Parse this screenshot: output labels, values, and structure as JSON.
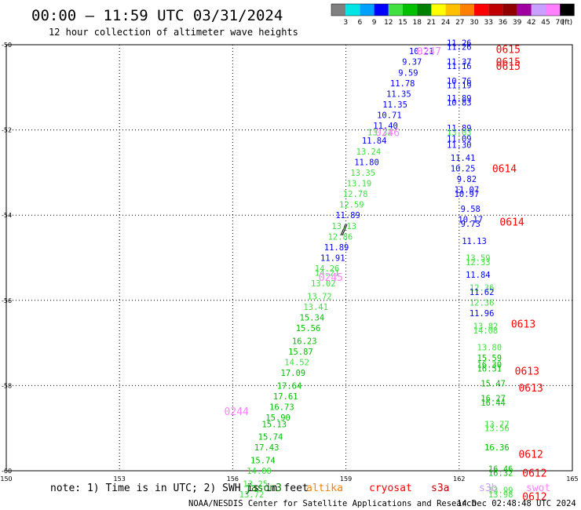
{
  "chart_data": {
    "type": "scatter",
    "title": "00:00 – 11:59 UTC 03/31/2024",
    "subtitle": "12 hour collection of altimeter wave heights",
    "xlim": [
      150,
      165
    ],
    "ylim": [
      -60,
      -50
    ],
    "x_ticks": [
      "150",
      "153",
      "156",
      "159",
      "162",
      "165"
    ],
    "y_ticks": [
      "-50",
      "-52",
      "-54",
      "-56",
      "-58",
      "-60"
    ],
    "grid": true,
    "colorbar": {
      "ticks": [
        "3",
        "6",
        "9",
        "12",
        "15",
        "18",
        "21",
        "24",
        "27",
        "30",
        "33",
        "36",
        "39",
        "42",
        "45",
        "70",
        "(ft)"
      ],
      "colors": [
        "#808080",
        "#00e5e5",
        "#00a0ff",
        "#0000ff",
        "#40e040",
        "#00c000",
        "#008000",
        "#ffff00",
        "#ffc000",
        "#ff8000",
        "#ff0000",
        "#c00000",
        "#900000",
        "#a000a0",
        "#c8a0ff",
        "#ff80ff",
        "#000000"
      ]
    },
    "series": [
      {
        "pass_labels": [
          {
            "text": "0247",
            "x": 161.2,
            "y": -50.15,
            "color": "#ff80ff"
          },
          {
            "text": "0246",
            "x": 160.1,
            "y": -52.05,
            "color": "#ff80ff"
          },
          {
            "text": "0245",
            "x": 158.6,
            "y": -55.45,
            "color": "#ff80ff"
          },
          {
            "text": "0244",
            "x": 156.1,
            "y": -58.6,
            "color": "#ff80ff"
          }
        ],
        "points": [
          {
            "x": 161.0,
            "y": -50.15,
            "label": "10.21",
            "color": "#0000ff"
          },
          {
            "x": 160.75,
            "y": -50.4,
            "label": "9.37",
            "color": "#0000ff"
          },
          {
            "x": 160.65,
            "y": -50.65,
            "label": "9.59",
            "color": "#0000ff"
          },
          {
            "x": 160.5,
            "y": -50.9,
            "label": "11.78",
            "color": "#0000ff"
          },
          {
            "x": 160.4,
            "y": -51.15,
            "label": "11.35",
            "color": "#0000ff"
          },
          {
            "x": 160.3,
            "y": -51.4,
            "label": "11.35",
            "color": "#0000ff"
          },
          {
            "x": 160.15,
            "y": -51.65,
            "label": "10.71",
            "color": "#0000ff"
          },
          {
            "x": 160.05,
            "y": -51.9,
            "label": "11.40",
            "color": "#0000ff"
          },
          {
            "x": 159.9,
            "y": -52.05,
            "label": "13.32",
            "color": "#40e040"
          },
          {
            "x": 159.75,
            "y": -52.25,
            "label": "11.84",
            "color": "#0000ff"
          },
          {
            "x": 159.6,
            "y": -52.5,
            "label": "13.24",
            "color": "#40e040"
          },
          {
            "x": 159.55,
            "y": -52.75,
            "label": "11.80",
            "color": "#0000ff"
          },
          {
            "x": 159.45,
            "y": -53.0,
            "label": "13.35",
            "color": "#40e040"
          },
          {
            "x": 159.35,
            "y": -53.25,
            "label": "13.19",
            "color": "#40e040"
          },
          {
            "x": 159.25,
            "y": -53.5,
            "label": "12.78",
            "color": "#40e040"
          },
          {
            "x": 159.15,
            "y": -53.75,
            "label": "12.59",
            "color": "#40e040"
          },
          {
            "x": 159.05,
            "y": -54.0,
            "label": "11.89",
            "color": "#0000ff"
          },
          {
            "x": 158.95,
            "y": -54.25,
            "label": "13.13",
            "color": "#40e040"
          },
          {
            "x": 158.85,
            "y": -54.5,
            "label": "12.86",
            "color": "#40e040"
          },
          {
            "x": 158.75,
            "y": -54.75,
            "label": "11.89",
            "color": "#0000ff"
          },
          {
            "x": 158.65,
            "y": -55.0,
            "label": "11.91",
            "color": "#0000ff"
          },
          {
            "x": 158.5,
            "y": -55.25,
            "label": "14.26",
            "color": "#40e040"
          },
          {
            "x": 158.5,
            "y": -55.35,
            "label": "14.21",
            "color": "#40e040"
          },
          {
            "x": 158.4,
            "y": -55.6,
            "label": "13.02",
            "color": "#40e040"
          },
          {
            "x": 158.3,
            "y": -55.9,
            "label": "13.72",
            "color": "#40e040"
          },
          {
            "x": 158.2,
            "y": -56.15,
            "label": "13.41",
            "color": "#40e040"
          },
          {
            "x": 158.1,
            "y": -56.4,
            "label": "15.34",
            "color": "#00c000"
          },
          {
            "x": 158.0,
            "y": -56.65,
            "label": "15.56",
            "color": "#00c000"
          },
          {
            "x": 157.9,
            "y": -56.95,
            "label": "16.23",
            "color": "#00c000"
          },
          {
            "x": 157.8,
            "y": -57.2,
            "label": "15.87",
            "color": "#00c000"
          },
          {
            "x": 157.7,
            "y": -57.45,
            "label": "14.52",
            "color": "#40e040"
          },
          {
            "x": 157.6,
            "y": -57.7,
            "label": "17.09",
            "color": "#00c000"
          },
          {
            "x": 157.5,
            "y": -58.0,
            "label": "17.64",
            "color": "#00c000"
          },
          {
            "x": 157.4,
            "y": -58.25,
            "label": "17.61",
            "color": "#00c000"
          },
          {
            "x": 157.3,
            "y": -58.5,
            "label": "16.73",
            "color": "#00c000"
          },
          {
            "x": 157.2,
            "y": -58.75,
            "label": "15.90",
            "color": "#00c000"
          },
          {
            "x": 157.1,
            "y": -58.9,
            "label": "15.13",
            "color": "#00c000"
          },
          {
            "x": 157.0,
            "y": -59.2,
            "label": "15.74",
            "color": "#00c000"
          },
          {
            "x": 156.9,
            "y": -59.45,
            "label": "17.43",
            "color": "#00c000"
          },
          {
            "x": 156.8,
            "y": -59.75,
            "label": "15.74",
            "color": "#00c000"
          },
          {
            "x": 156.7,
            "y": -60.0,
            "label": "14.00",
            "color": "#40e040"
          },
          {
            "x": 156.6,
            "y": -60.3,
            "label": "13.25",
            "color": "#40e040"
          },
          {
            "x": 156.5,
            "y": -60.55,
            "label": "13.72",
            "color": "#40e040"
          }
        ]
      },
      {
        "pass_labels": [
          {
            "text": "0615",
            "x": 163.3,
            "y": -50.1,
            "color": "#ff0000"
          },
          {
            "text": "0615",
            "x": 163.3,
            "y": -50.4,
            "color": "#ff0000"
          },
          {
            "text": "0615",
            "x": 163.3,
            "y": -50.5,
            "color": "#ff0000"
          },
          {
            "text": "0614",
            "x": 163.2,
            "y": -52.9,
            "color": "#ff0000"
          },
          {
            "text": "0614",
            "x": 163.4,
            "y": -54.15,
            "color": "#ff0000"
          },
          {
            "text": "0613",
            "x": 163.7,
            "y": -56.55,
            "color": "#ff0000"
          },
          {
            "text": "0613",
            "x": 163.8,
            "y": -57.65,
            "color": "#ff0000"
          },
          {
            "text": "0613",
            "x": 163.9,
            "y": -58.05,
            "color": "#ff0000"
          },
          {
            "text": "0612",
            "x": 163.9,
            "y": -59.6,
            "color": "#ff0000"
          },
          {
            "text": "0612",
            "x": 164.0,
            "y": -60.05,
            "color": "#ff0000"
          },
          {
            "text": "0612",
            "x": 164.0,
            "y": -60.6,
            "color": "#ff0000"
          }
        ],
        "points": [
          {
            "x": 162.0,
            "y": -49.95,
            "label": "11.26",
            "color": "#0000ff"
          },
          {
            "x": 162.0,
            "y": -50.05,
            "label": "11.26",
            "color": "#0000ff"
          },
          {
            "x": 162.0,
            "y": -50.4,
            "label": "11.37",
            "color": "#0000ff"
          },
          {
            "x": 162.0,
            "y": -50.5,
            "label": "11.16",
            "color": "#0000ff"
          },
          {
            "x": 162.0,
            "y": -50.85,
            "label": "10.76",
            "color": "#0000ff"
          },
          {
            "x": 162.0,
            "y": -50.95,
            "label": "11.19",
            "color": "#0000ff"
          },
          {
            "x": 162.0,
            "y": -51.25,
            "label": "11.89",
            "color": "#0000ff"
          },
          {
            "x": 162.0,
            "y": -51.35,
            "label": "10.83",
            "color": "#0000ff"
          },
          {
            "x": 162.0,
            "y": -51.95,
            "label": "11.89",
            "color": "#0000ff"
          },
          {
            "x": 162.0,
            "y": -52.05,
            "label": "13.03",
            "color": "#40e040"
          },
          {
            "x": 162.0,
            "y": -52.2,
            "label": "11.09",
            "color": "#0000ff"
          },
          {
            "x": 162.0,
            "y": -52.35,
            "label": "11.30",
            "color": "#0000ff"
          },
          {
            "x": 162.1,
            "y": -52.65,
            "label": "11.41",
            "color": "#0000ff"
          },
          {
            "x": 162.1,
            "y": -52.9,
            "label": "10.25",
            "color": "#0000ff"
          },
          {
            "x": 162.2,
            "y": -53.15,
            "label": "9.82",
            "color": "#0000ff"
          },
          {
            "x": 162.2,
            "y": -53.4,
            "label": "11.07",
            "color": "#0000ff"
          },
          {
            "x": 162.2,
            "y": -53.5,
            "label": "10.97",
            "color": "#0000ff"
          },
          {
            "x": 162.3,
            "y": -53.85,
            "label": "9.58",
            "color": "#0000ff"
          },
          {
            "x": 162.3,
            "y": -54.1,
            "label": "10.17",
            "color": "#0000ff"
          },
          {
            "x": 162.3,
            "y": -54.2,
            "label": "9.73",
            "color": "#0000ff"
          },
          {
            "x": 162.4,
            "y": -54.6,
            "label": "11.13",
            "color": "#0000ff"
          },
          {
            "x": 162.5,
            "y": -55.0,
            "label": "13.59",
            "color": "#40e040"
          },
          {
            "x": 162.5,
            "y": -55.1,
            "label": "12.33",
            "color": "#40e040"
          },
          {
            "x": 162.5,
            "y": -55.4,
            "label": "11.84",
            "color": "#0000ff"
          },
          {
            "x": 162.6,
            "y": -55.7,
            "label": "12.36",
            "color": "#40e040"
          },
          {
            "x": 162.6,
            "y": -55.8,
            "label": "11.62",
            "color": "#0000ff"
          },
          {
            "x": 162.6,
            "y": -56.05,
            "label": "12.36",
            "color": "#40e040"
          },
          {
            "x": 162.6,
            "y": -56.3,
            "label": "11.96",
            "color": "#0000ff"
          },
          {
            "x": 162.7,
            "y": -56.6,
            "label": "13.82",
            "color": "#40e040"
          },
          {
            "x": 162.7,
            "y": -56.7,
            "label": "14.08",
            "color": "#40e040"
          },
          {
            "x": 162.8,
            "y": -57.1,
            "label": "13.80",
            "color": "#40e040"
          },
          {
            "x": 162.8,
            "y": -57.35,
            "label": "15.59",
            "color": "#00c000"
          },
          {
            "x": 162.8,
            "y": -57.5,
            "label": "16.30",
            "color": "#00c000"
          },
          {
            "x": 162.8,
            "y": -57.6,
            "label": "16.51",
            "color": "#00c000"
          },
          {
            "x": 162.9,
            "y": -57.95,
            "label": "15.47",
            "color": "#00c000"
          },
          {
            "x": 162.9,
            "y": -58.3,
            "label": "16.27",
            "color": "#00c000"
          },
          {
            "x": 162.9,
            "y": -58.4,
            "label": "16.44",
            "color": "#00c000"
          },
          {
            "x": 163.0,
            "y": -58.9,
            "label": "13.77",
            "color": "#40e040"
          },
          {
            "x": 163.0,
            "y": -59.0,
            "label": "13.56",
            "color": "#40e040"
          },
          {
            "x": 163.0,
            "y": -59.45,
            "label": "16.36",
            "color": "#00c000"
          },
          {
            "x": 163.1,
            "y": -59.95,
            "label": "16.46",
            "color": "#00c000"
          },
          {
            "x": 163.1,
            "y": -60.05,
            "label": "16.32",
            "color": "#00c000"
          },
          {
            "x": 163.1,
            "y": -60.45,
            "label": "13.99",
            "color": "#40e040"
          },
          {
            "x": 163.1,
            "y": -60.55,
            "label": "13.98",
            "color": "#40e040"
          }
        ]
      }
    ]
  },
  "note": "note: 1) Time is in UTC; 2) SWH is in feet",
  "legend": [
    {
      "text": "jason3",
      "color": "#008000"
    },
    {
      "text": "altika",
      "color": "#ff8000"
    },
    {
      "text": "cryosat",
      "color": "#ff0000"
    },
    {
      "text": "s3a",
      "color": "#c00000"
    },
    {
      "text": "s3b",
      "color": "#c8a0ff"
    },
    {
      "text": "swot",
      "color": "#ff80ff"
    }
  ],
  "credit_left": "NOAA/NESDIS Center for Satellite Applications and Research",
  "credit_right": "14 Dec 02:48:48 UTC 2024"
}
